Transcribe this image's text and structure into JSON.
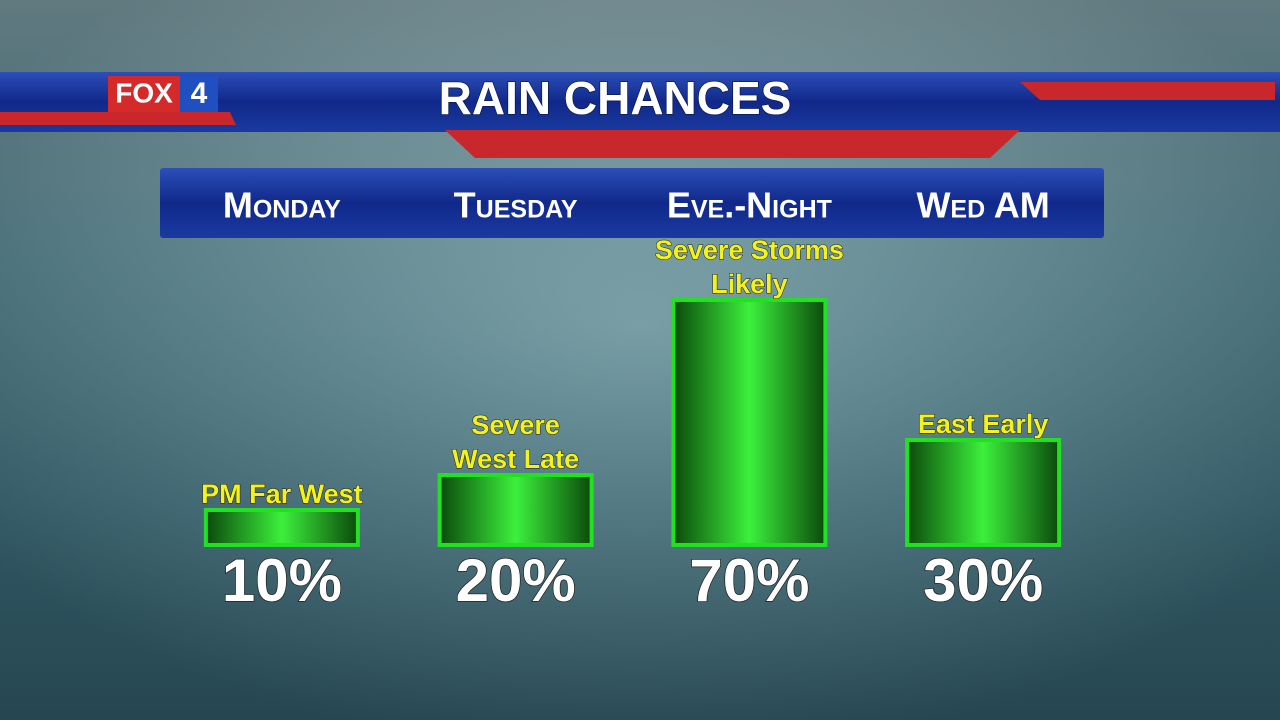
{
  "logo": {
    "brand": "FOX",
    "number": "4"
  },
  "chart_data": {
    "type": "bar",
    "title": "RAIN CHANCES",
    "categories": [
      "Monday",
      "Tuesday",
      "Eve.-Night",
      "Wed AM"
    ],
    "values": [
      10,
      20,
      70,
      30
    ],
    "value_labels": [
      "10%",
      "20%",
      "70%",
      "30%"
    ],
    "annotations": [
      [
        "PM Far West"
      ],
      [
        "Severe",
        "West Late"
      ],
      [
        "Severe Storms",
        "Likely"
      ],
      [
        "East Early"
      ]
    ],
    "color": "#22e022"
  }
}
